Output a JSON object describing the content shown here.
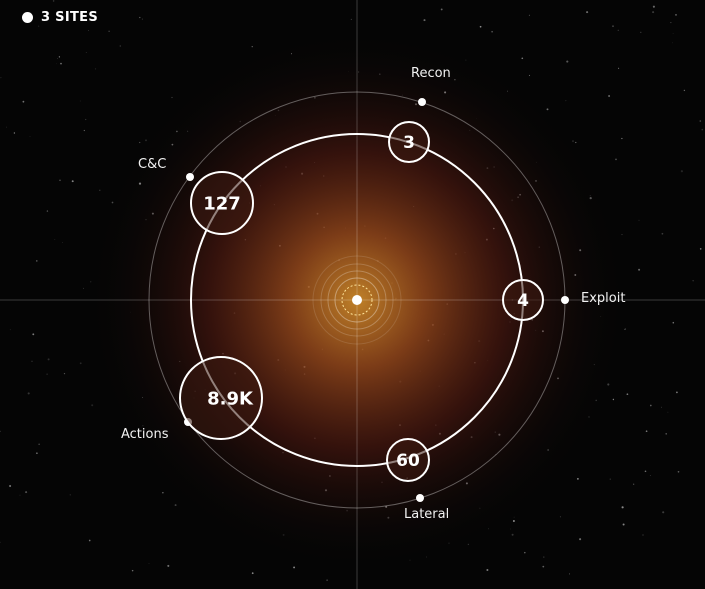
{
  "site_count_label": "3 SITES",
  "center": {
    "icon": "target-icon"
  },
  "stages": [
    {
      "key": "recon",
      "label": "Recon",
      "count": "3"
    },
    {
      "key": "exploit",
      "label": "Exploit",
      "count": "4"
    },
    {
      "key": "lateral",
      "label": "Lateral",
      "count": "60"
    },
    {
      "key": "actions",
      "label": "Actions",
      "count": "8.9K"
    },
    {
      "key": "cnc",
      "label": "C&C",
      "count": "127"
    }
  ],
  "colors": {
    "ring": "#ffffff",
    "glow_inner": "#b87a22",
    "glow_mid": "#7a2a14",
    "background": "#050505"
  }
}
